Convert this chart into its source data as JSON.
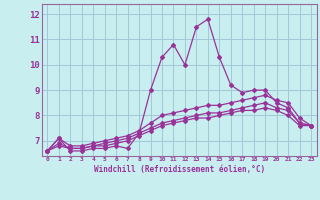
{
  "xlabel": "Windchill (Refroidissement éolien,°C)",
  "background_color": "#c8eef0",
  "grid_color": "#a0c8d8",
  "line_color": "#993399",
  "border_color": "#996699",
  "x_values": [
    0,
    1,
    2,
    3,
    4,
    5,
    6,
    7,
    8,
    9,
    10,
    11,
    12,
    13,
    14,
    15,
    16,
    17,
    18,
    19,
    20,
    21,
    22,
    23
  ],
  "series1": [
    6.6,
    7.1,
    6.6,
    6.6,
    6.7,
    6.7,
    6.8,
    6.7,
    7.3,
    9.0,
    10.3,
    10.8,
    10.0,
    11.5,
    11.8,
    10.3,
    9.2,
    8.9,
    9.0,
    9.0,
    8.5,
    8.3,
    7.7,
    7.6
  ],
  "series2": [
    6.6,
    7.1,
    6.8,
    6.8,
    6.9,
    7.0,
    7.1,
    7.2,
    7.4,
    7.7,
    8.0,
    8.1,
    8.2,
    8.3,
    8.4,
    8.4,
    8.5,
    8.6,
    8.7,
    8.8,
    8.6,
    8.5,
    7.9,
    7.6
  ],
  "series3": [
    6.6,
    6.9,
    6.7,
    6.7,
    6.8,
    6.9,
    7.0,
    7.1,
    7.3,
    7.5,
    7.7,
    7.8,
    7.9,
    8.0,
    8.1,
    8.1,
    8.2,
    8.3,
    8.4,
    8.5,
    8.3,
    8.2,
    7.7,
    7.6
  ],
  "series4": [
    6.6,
    6.8,
    6.7,
    6.7,
    6.8,
    6.8,
    6.9,
    7.0,
    7.2,
    7.4,
    7.6,
    7.7,
    7.8,
    7.9,
    7.9,
    8.0,
    8.1,
    8.2,
    8.2,
    8.3,
    8.2,
    8.0,
    7.6,
    7.6
  ],
  "ylim": [
    6.4,
    12.4
  ],
  "yticks": [
    7,
    8,
    9,
    10,
    11,
    12
  ],
  "xlim": [
    -0.5,
    23.5
  ]
}
